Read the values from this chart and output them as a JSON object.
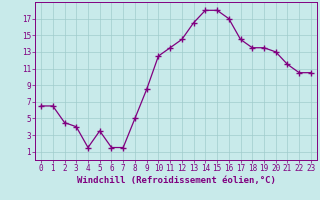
{
  "x": [
    0,
    1,
    2,
    3,
    4,
    5,
    6,
    7,
    8,
    9,
    10,
    11,
    12,
    13,
    14,
    15,
    16,
    17,
    18,
    19,
    20,
    21,
    22,
    23
  ],
  "y": [
    6.5,
    6.5,
    4.5,
    4.0,
    1.5,
    3.5,
    1.5,
    1.5,
    5.0,
    8.5,
    12.5,
    13.5,
    14.5,
    16.5,
    18.0,
    18.0,
    17.0,
    14.5,
    13.5,
    13.5,
    13.0,
    11.5,
    10.5,
    10.5
  ],
  "line_color": "#800080",
  "marker": "+",
  "marker_size": 4,
  "bg_color": "#c8eaea",
  "grid_color": "#a0cccc",
  "xlabel": "Windchill (Refroidissement éolien,°C)",
  "xlim": [
    -0.5,
    23.5
  ],
  "ylim": [
    0,
    19
  ],
  "yticks": [
    1,
    3,
    5,
    7,
    9,
    11,
    13,
    15,
    17
  ],
  "xticks": [
    0,
    1,
    2,
    3,
    4,
    5,
    6,
    7,
    8,
    9,
    10,
    11,
    12,
    13,
    14,
    15,
    16,
    17,
    18,
    19,
    20,
    21,
    22,
    23
  ],
  "title_color": "#800080",
  "font_name": "monospace",
  "label_fontsize": 6.5,
  "tick_fontsize": 5.5
}
